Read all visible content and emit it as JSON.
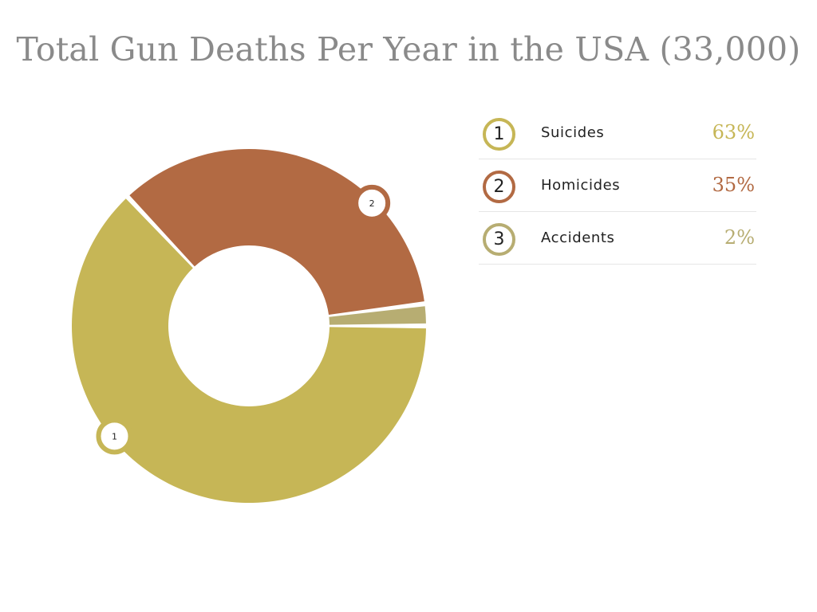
{
  "title": "Total Gun Deaths Per Year in the USA (33,000)",
  "chart_data": {
    "type": "pie",
    "variant": "donut",
    "title": "Total Gun Deaths Per Year in the USA (33,000)",
    "categories": [
      "Suicides",
      "Homicides",
      "Accidents"
    ],
    "values": [
      63,
      35,
      2
    ],
    "unit": "%",
    "colors": [
      "#c6b656",
      "#b26a43",
      "#b7ad72"
    ],
    "value_colors": [
      "#c6b656",
      "#b26a43",
      "#b7ad72"
    ],
    "slice_markers": [
      "1",
      "2",
      ""
    ],
    "legend": {
      "placement": "right",
      "items": [
        {
          "index": "1",
          "label": "Suicides",
          "value": "63%"
        },
        {
          "index": "2",
          "label": "Homicides",
          "value": "35%"
        },
        {
          "index": "3",
          "label": "Accidents",
          "value": "2%"
        }
      ]
    }
  }
}
